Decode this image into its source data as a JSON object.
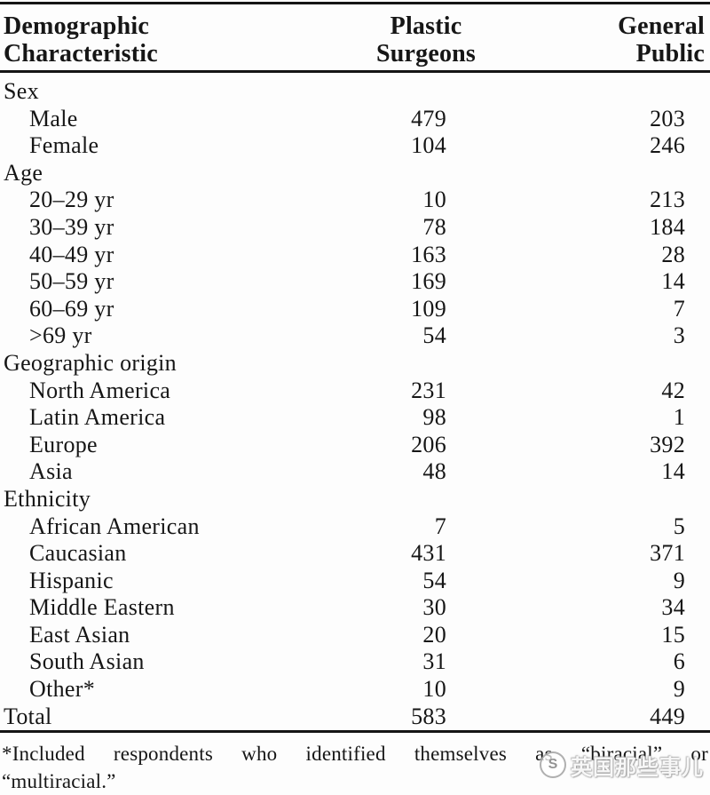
{
  "table": {
    "header": {
      "col1": [
        "Demographic",
        "Characteristic"
      ],
      "col2": [
        "Plastic",
        "Surgeons"
      ],
      "col3": [
        "General",
        "Public"
      ]
    },
    "rows": [
      {
        "label": "Sex",
        "ps": "",
        "gp": "",
        "type": "section"
      },
      {
        "label": "Male",
        "ps": "479",
        "gp": "203",
        "type": "item"
      },
      {
        "label": "Female",
        "ps": "104",
        "gp": "246",
        "type": "item"
      },
      {
        "label": "Age",
        "ps": "",
        "gp": "",
        "type": "section"
      },
      {
        "label": "20–29 yr",
        "ps": "10",
        "gp": "213",
        "type": "item"
      },
      {
        "label": "30–39 yr",
        "ps": "78",
        "gp": "184",
        "type": "item"
      },
      {
        "label": "40–49 yr",
        "ps": "163",
        "gp": "28",
        "type": "item"
      },
      {
        "label": "50–59 yr",
        "ps": "169",
        "gp": "14",
        "type": "item"
      },
      {
        "label": "60–69 yr",
        "ps": "109",
        "gp": "7",
        "type": "item"
      },
      {
        "label": ">69 yr",
        "ps": "54",
        "gp": "3",
        "type": "item"
      },
      {
        "label": "Geographic origin",
        "ps": "",
        "gp": "",
        "type": "section"
      },
      {
        "label": "North America",
        "ps": "231",
        "gp": "42",
        "type": "item"
      },
      {
        "label": "Latin America",
        "ps": "98",
        "gp": "1",
        "type": "item"
      },
      {
        "label": "Europe",
        "ps": "206",
        "gp": "392",
        "type": "item"
      },
      {
        "label": "Asia",
        "ps": "48",
        "gp": "14",
        "type": "item"
      },
      {
        "label": "Ethnicity",
        "ps": "",
        "gp": "",
        "type": "section"
      },
      {
        "label": "African American",
        "ps": "7",
        "gp": "5",
        "type": "item"
      },
      {
        "label": "Caucasian",
        "ps": "431",
        "gp": "371",
        "type": "item"
      },
      {
        "label": "Hispanic",
        "ps": "54",
        "gp": "9",
        "type": "item"
      },
      {
        "label": "Middle Eastern",
        "ps": "30",
        "gp": "34",
        "type": "item"
      },
      {
        "label": "East Asian",
        "ps": "20",
        "gp": "15",
        "type": "item"
      },
      {
        "label": "South Asian",
        "ps": "31",
        "gp": "6",
        "type": "item"
      },
      {
        "label": "Other*",
        "ps": "10",
        "gp": "9",
        "type": "item"
      },
      {
        "label": "Total",
        "ps": "583",
        "gp": "449",
        "type": "total"
      }
    ]
  },
  "footnote": {
    "line1": "*Included respondents who identified themselves as “biracial” or",
    "line2": "“multiracial.”"
  },
  "watermark": {
    "logo_letter": "S",
    "text": "英国那些事儿"
  },
  "colors": {
    "text": "#161616",
    "rule": "#151515",
    "background": "#fdfdfd",
    "watermark_text": "#fcfcfc"
  }
}
